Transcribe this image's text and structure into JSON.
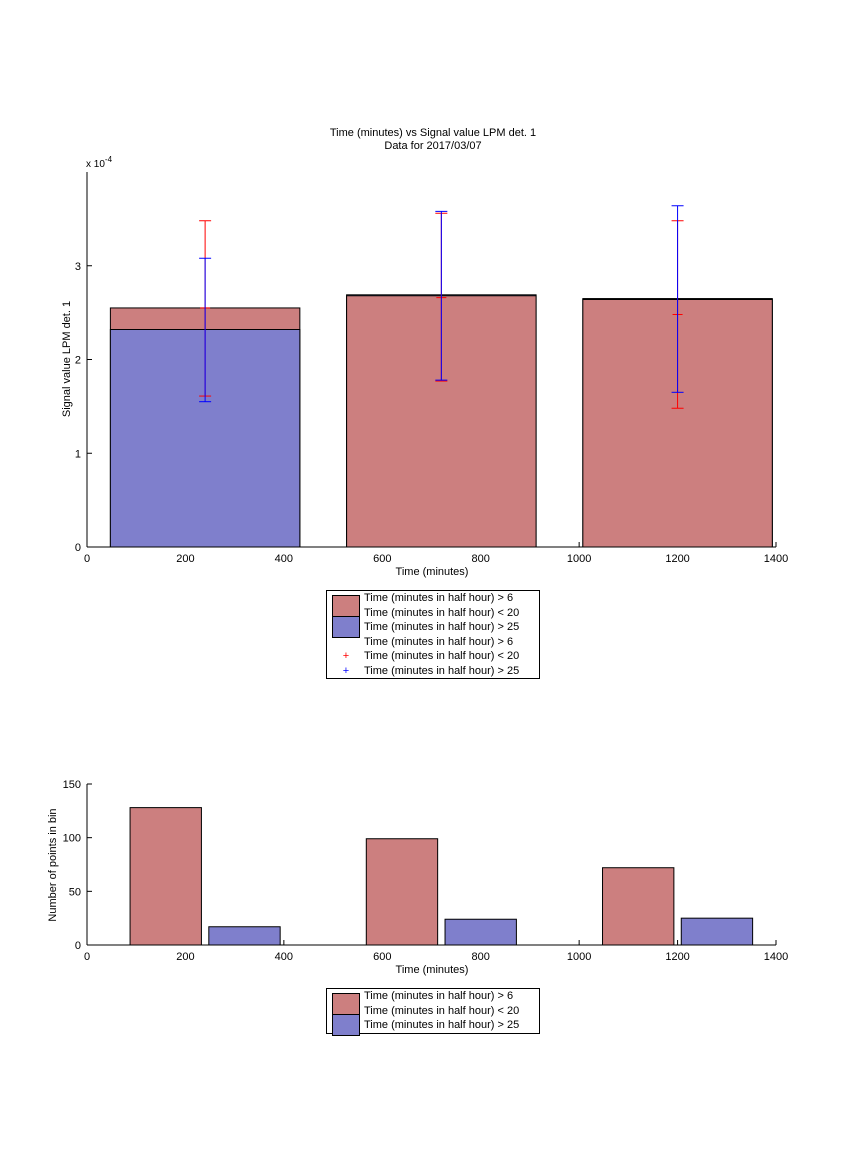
{
  "colors": {
    "red": "#cc7f7f",
    "blue": "#7f7fcc",
    "red_err": "#ff0000",
    "blue_err": "#0000ff"
  },
  "chart_data": [
    {
      "type": "bar",
      "title": "Time (minutes) vs Signal value LPM det. 1",
      "subtitle": "Data for 2017/03/07",
      "xlabel": "Time (minutes)",
      "ylabel": "Signal value LPM det. 1",
      "exponent_label": "x 10",
      "exponent_power": "-4",
      "xlim": [
        0,
        1400
      ],
      "ylim": [
        0,
        4
      ],
      "xticks": [
        "0",
        "200",
        "400",
        "600",
        "800",
        "1000",
        "1200",
        "1400"
      ],
      "yticks": [
        "0",
        "1",
        "2",
        "3"
      ],
      "bars": [
        {
          "x_center": 240,
          "width": 385,
          "series_values": [
            2.55,
            2.32
          ]
        },
        {
          "x_center": 720,
          "width": 385,
          "series_values": [
            2.68,
            2.69
          ]
        },
        {
          "x_center": 1200,
          "width": 385,
          "series_values": [
            2.64,
            2.65
          ]
        }
      ],
      "series": [
        {
          "name": "Time (minutes in half hour) > 6\nTime (minutes in half hour) < 20",
          "values": [
            2.55,
            2.68,
            2.64
          ],
          "err_low": [
            1.61,
            1.77,
            1.48
          ],
          "err_high": [
            3.48,
            3.56,
            3.48
          ],
          "mid": [
            2.55,
            2.66,
            2.48
          ]
        },
        {
          "name": "Time (minutes in half hour) > 25",
          "values": [
            2.32,
            2.69,
            2.65
          ],
          "err_low": [
            1.55,
            1.78,
            1.65
          ],
          "err_high": [
            3.08,
            3.58,
            3.64
          ]
        }
      ],
      "legend": [
        {
          "label": "Time (minutes in half hour) > 6",
          "kind": "swatch-red"
        },
        {
          "label": "Time (minutes in half hour) < 20",
          "kind": "none"
        },
        {
          "label": "Time (minutes in half hour) > 25",
          "kind": "swatch-blue"
        },
        {
          "label": "Time (minutes in half hour) > 6",
          "kind": "none"
        },
        {
          "label": "Time (minutes in half hour) < 20",
          "kind": "marker-red"
        },
        {
          "label": "Time (minutes in half hour) > 25",
          "kind": "marker-blue"
        }
      ]
    },
    {
      "type": "bar",
      "xlabel": "Time (minutes)",
      "ylabel": "Number of points in bin",
      "xlim": [
        0,
        1400
      ],
      "ylim": [
        0,
        150
      ],
      "xticks": [
        "0",
        "200",
        "400",
        "600",
        "800",
        "1000",
        "1200",
        "1400"
      ],
      "yticks": [
        "0",
        "50",
        "100",
        "150"
      ],
      "bar_width": 145,
      "series": [
        {
          "name": "Time (minutes in half hour) > 6\nTime (minutes in half hour) < 20",
          "x": [
            160,
            640,
            1120
          ],
          "values": [
            128,
            99,
            72
          ]
        },
        {
          "name": "Time (minutes in half hour) > 25",
          "x": [
            320,
            800,
            1280
          ],
          "values": [
            17,
            24,
            25
          ]
        }
      ],
      "legend": [
        {
          "label": "Time (minutes in half hour) > 6",
          "kind": "swatch-red"
        },
        {
          "label": "Time (minutes in half hour) < 20",
          "kind": "none"
        },
        {
          "label": "Time (minutes in half hour) > 25",
          "kind": "swatch-blue"
        }
      ]
    }
  ]
}
